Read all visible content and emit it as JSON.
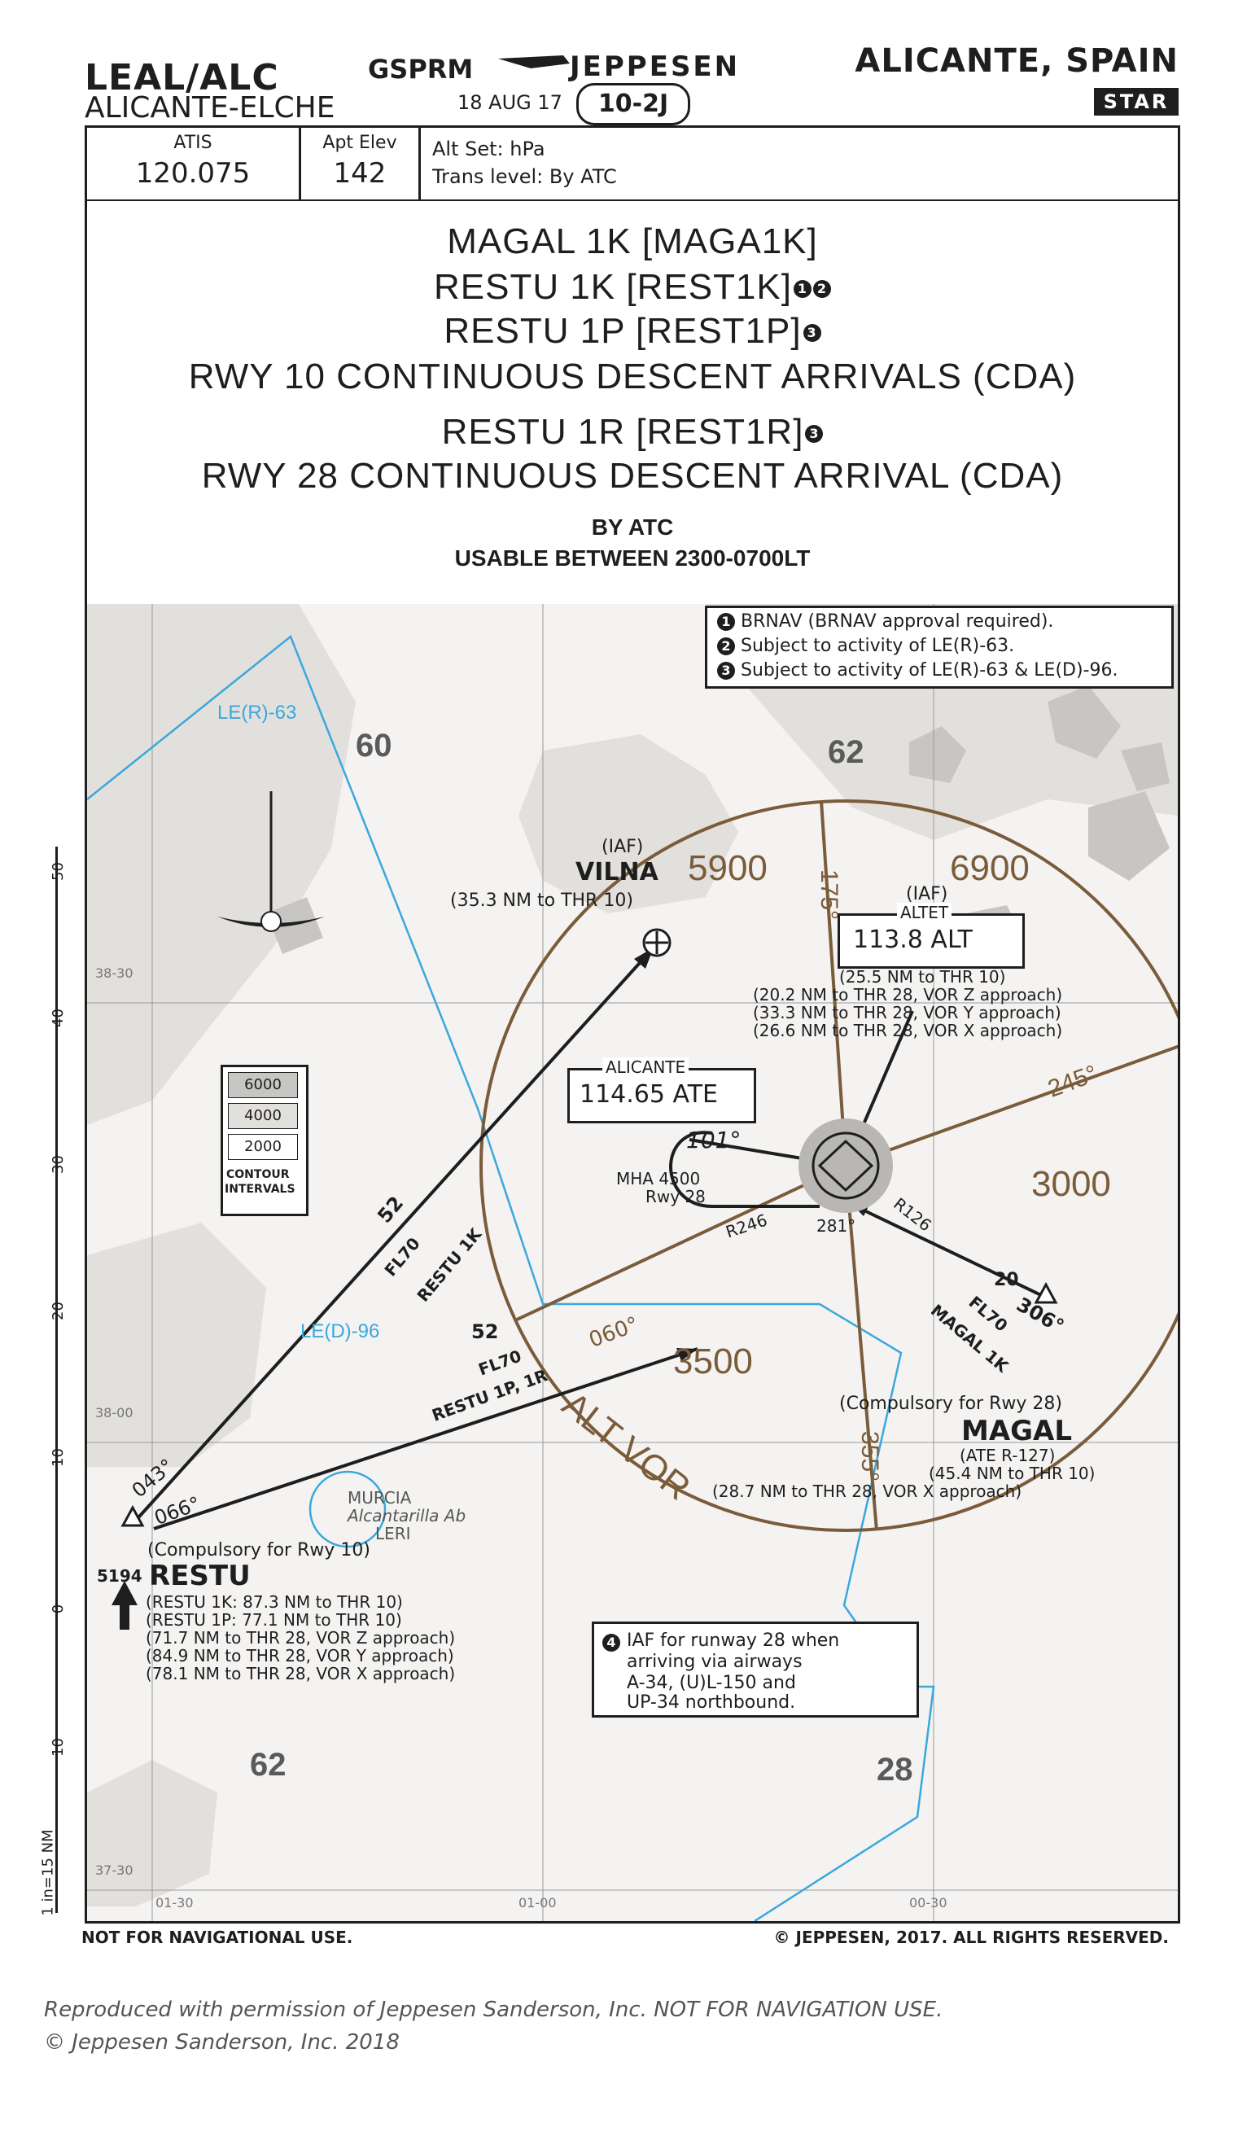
{
  "header": {
    "ident": "LEAL/ALC",
    "airport_name": "ALICANTE-ELCHE",
    "procedure_code": "GSPRM",
    "date": "18 AUG 17",
    "index": "10-2J",
    "brand": "JEPPESEN",
    "city": "ALICANTE, SPAIN",
    "chart_type": "STAR"
  },
  "info": {
    "atis_label": "ATIS",
    "atis_freq": "120.075",
    "elev_label": "Apt Elev",
    "elev_value": "142",
    "altset": "Alt Set: hPa",
    "trans_level": "Trans level: By ATC"
  },
  "title": {
    "line1": "MAGAL 1K [MAGA1K]",
    "line2": "RESTU 1K [REST1K]",
    "line3": "RESTU 1P [REST1P]",
    "line4": "RWY 10 CONTINUOUS DESCENT ARRIVALS (CDA)",
    "line5": "RESTU 1R [REST1R]",
    "line6": "RWY 28 CONTINUOUS DESCENT ARRIVAL (CDA)",
    "line7": "BY ATC",
    "line8": "USABLE BETWEEN 2300-0700LT",
    "n1": "1",
    "n2": "2",
    "n3": "3"
  },
  "notes": {
    "n1": "BRNAV (BRNAV approval required).",
    "n2": "Subject to activity of LE(R)-63.",
    "n3": "Subject to activity of LE(R)-63 & LE(D)-96."
  },
  "map": {
    "le_r_63": "LE(R)-63",
    "le_d_96": "LE(D)-96",
    "grid_60": "60",
    "grid_62a": "62",
    "grid_62b": "62",
    "grid_28": "28",
    "msa_5900": "5900",
    "msa_6900": "6900",
    "msa_3000": "3000",
    "msa_3500": "3500",
    "r175": "175°",
    "r245": "245°",
    "r355": "355°",
    "alt_vor": "ALT VOR",
    "vilna_iaf": "(IAF)",
    "vilna": "VILNA",
    "vilna_dist": "(35.3 NM to THR 10)",
    "altet_iaf": "(IAF)",
    "altet_name": "ALTET",
    "altet_freq": "113.8 ALT",
    "altet_d1": "(25.5 NM to THR 10)",
    "altet_d2": "(20.2 NM to THR 28, VOR Z approach)",
    "altet_d3": "(33.3 NM to THR 28, VOR Y approach)",
    "altet_d4": "(26.6 NM to THR 28, VOR X approach)",
    "alicante_name": "ALICANTE",
    "alicante_freq": "114.65 ATE",
    "hold_101": "101°",
    "mha": "MHA 4500",
    "mha_rwy": "Rwy 28",
    "r246": "R246",
    "h281": "281°",
    "r126": "R126",
    "contour_6000": "6000",
    "contour_4000": "4000",
    "contour_2000": "2000",
    "contour_label1": "CONTOUR",
    "contour_label2": "INTERVALS",
    "leg52a": "52",
    "fl70a": "FL70",
    "restu1k": "RESTU 1K",
    "leg52b": "52",
    "fl70b": "FL70",
    "restu1p": "RESTU 1P, 1R",
    "crs060": "060°",
    "leg20": "20",
    "fl70c": "FL70",
    "magal1k": "MAGAL 1K",
    "crs306": "306°",
    "magal_comp": "(Compulsory for Rwy 28)",
    "magal": "MAGAL",
    "magal_r": "(ATE R-127)",
    "magal_d1": "(45.4 NM to THR 10)",
    "magal_d2": "(28.7 NM to THR 28, VOR X approach)",
    "restu_043": "043°",
    "restu_066": "066°",
    "restu_comp": "(Compulsory for Rwy 10)",
    "restu_elev": "5194",
    "restu": "RESTU",
    "restu_d1": "(RESTU 1K: 87.3 NM to THR 10)",
    "restu_d2": "(RESTU 1P: 77.1 NM to THR 10)",
    "restu_d3": "(71.7 NM to THR 28, VOR Z approach)",
    "restu_d4": "(84.9 NM to THR 28, VOR Y approach)",
    "restu_d5": "(78.1 NM to THR 28, VOR X approach)",
    "murcia1": "MURCIA",
    "murcia2": "Alcantarilla Ab",
    "murcia3": "LERI",
    "iaf_note1": "IAF for runway 28 when",
    "iaf_note2": "arriving via airways",
    "iaf_note3": "A-34, (U)L-150 and",
    "iaf_note4": "UP-34 northbound.",
    "lat1": "38-30",
    "lat2": "38-00",
    "lat3": "37-30",
    "lon1": "01-30",
    "lon2": "01-00",
    "lon3": "00-30",
    "scale50": "50",
    "scale40": "40",
    "scale30": "30",
    "scale20": "20",
    "scale10": "10",
    "scale0": "0",
    "scale10b": "10",
    "scale_note": "1 in=15 NM",
    "n4": "4"
  },
  "footer": {
    "left": "NOT FOR NAVIGATIONAL USE.",
    "right": "© JEPPESEN, 2017. ALL RIGHTS RESERVED.",
    "repro1": "Reproduced with permission of Jeppesen Sanderson, Inc. NOT FOR NAVIGATION USE.",
    "repro2": "© Jeppesen Sanderson, Inc. 2018"
  },
  "colors": {
    "terrain": "#e2e0dc",
    "terrain_dark": "#c8c6c2",
    "brown": "#7a5c3a",
    "blue": "#3ba7dd",
    "ink": "#1e1e1e"
  }
}
